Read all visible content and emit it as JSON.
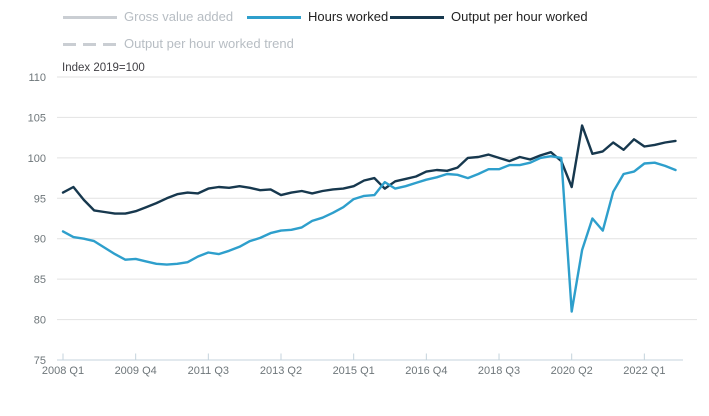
{
  "legend": {
    "items": [
      {
        "label": "Gross value added",
        "color": "#caced3",
        "text_color": "#b7bdc3",
        "style": "solid",
        "enabled": false,
        "row": 1
      },
      {
        "label": "Hours worked",
        "color": "#2e9fcc",
        "text_color": "#222222",
        "style": "solid",
        "enabled": true,
        "row": 1
      },
      {
        "label": "Output per hour worked",
        "color": "#17384e",
        "text_color": "#222222",
        "style": "solid",
        "enabled": true,
        "row": 1
      },
      {
        "label": "Output per hour worked trend",
        "color": "#caced3",
        "text_color": "#b7bdc3",
        "style": "dashed",
        "enabled": false,
        "row": 2
      }
    ]
  },
  "chart_data": {
    "type": "line",
    "annotation": "Index 2019=100",
    "x_unit": "quarter",
    "x_range": [
      "2008 Q1",
      "2022 Q4"
    ],
    "ylim": [
      75,
      110
    ],
    "yticks": [
      75,
      80,
      85,
      90,
      95,
      100,
      105,
      110
    ],
    "xticks": {
      "labels": [
        "2008 Q1",
        "2009 Q4",
        "2011 Q3",
        "2013 Q2",
        "2015 Q1",
        "2016 Q4",
        "2018 Q3",
        "2020 Q2",
        "2022 Q1"
      ],
      "indices": [
        0,
        7,
        14,
        21,
        28,
        35,
        42,
        49,
        56
      ]
    },
    "grid": "horizontal",
    "legend_position": "top",
    "series": [
      {
        "name": "Output per hour worked",
        "color": "#17384e",
        "values": [
          95.7,
          96.4,
          94.8,
          93.5,
          93.3,
          93.1,
          93.1,
          93.4,
          93.9,
          94.4,
          95.0,
          95.5,
          95.7,
          95.6,
          96.2,
          96.4,
          96.3,
          96.5,
          96.3,
          96.0,
          96.1,
          95.4,
          95.7,
          95.9,
          95.6,
          95.9,
          96.1,
          96.2,
          96.5,
          97.2,
          97.5,
          96.2,
          97.1,
          97.4,
          97.7,
          98.3,
          98.5,
          98.4,
          98.8,
          100.0,
          100.1,
          100.4,
          100.0,
          99.6,
          100.1,
          99.8,
          100.3,
          100.7,
          99.6,
          96.4,
          104.0,
          100.5,
          100.8,
          101.9,
          101.0,
          102.3,
          101.4,
          101.6,
          101.9,
          102.1
        ]
      },
      {
        "name": "Hours worked",
        "color": "#2e9fcc",
        "values": [
          90.9,
          90.2,
          90.0,
          89.7,
          88.9,
          88.1,
          87.4,
          87.5,
          87.2,
          86.9,
          86.8,
          86.9,
          87.1,
          87.8,
          88.3,
          88.1,
          88.5,
          89.0,
          89.7,
          90.1,
          90.7,
          91.0,
          91.1,
          91.4,
          92.2,
          92.6,
          93.2,
          93.9,
          94.9,
          95.3,
          95.4,
          97.0,
          96.2,
          96.5,
          96.9,
          97.3,
          97.6,
          98.0,
          97.9,
          97.5,
          98.0,
          98.6,
          98.6,
          99.1,
          99.1,
          99.4,
          100.0,
          100.2,
          100.0,
          81.0,
          88.6,
          92.5,
          91.0,
          95.8,
          98.0,
          98.3,
          99.3,
          99.4,
          99.0,
          98.5
        ]
      },
      {
        "name": "Gross value added",
        "visible": false,
        "values": []
      },
      {
        "name": "Output per hour worked trend",
        "visible": false,
        "values": []
      }
    ]
  },
  "colors": {
    "gridline": "#e2e2e2",
    "axis": "#c4d3dc",
    "tick_label": "#6e767a",
    "annotation": "#414045",
    "background": "#ffffff"
  }
}
